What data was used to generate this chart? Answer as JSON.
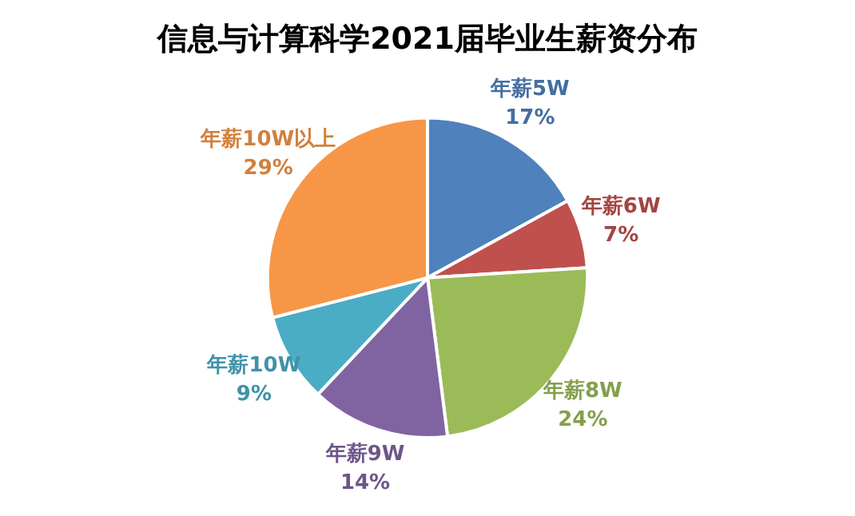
{
  "chart_data": {
    "type": "pie",
    "title": "信息与计算科学2021届毕业生薪资分布",
    "categories": [
      "年薪5W",
      "年薪6W",
      "年薪8W",
      "年薪9W",
      "年薪10W",
      "年薪10W以上"
    ],
    "values": [
      17,
      7,
      24,
      14,
      9,
      29
    ],
    "colors": [
      "#4f81bd",
      "#c0504d",
      "#9bbb59",
      "#8064a2",
      "#4bacc6",
      "#f79646"
    ],
    "value_labels": [
      "17%",
      "7%",
      "24%",
      "14%",
      "9%",
      "29%"
    ],
    "legend": false
  }
}
